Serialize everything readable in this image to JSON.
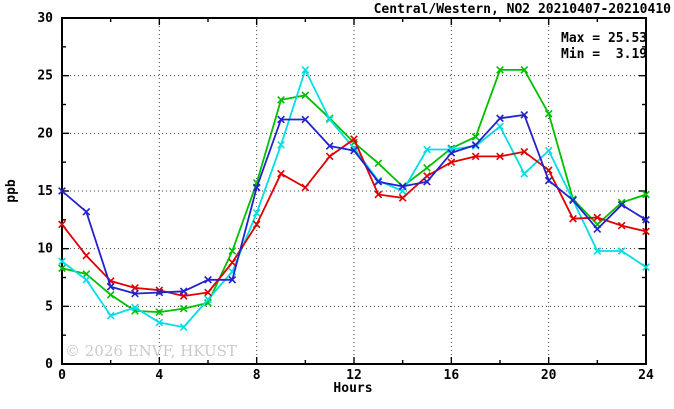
{
  "watermark": {
    "text": "© 2026 ENVF, HKUST",
    "color": "#cacaca"
  },
  "chart_data": {
    "type": "line",
    "title": "Central/Western, NO2 20210407-20210410",
    "xlabel": "Hours",
    "ylabel": "ppb",
    "xlim": [
      0,
      24
    ],
    "ylim": [
      0,
      30
    ],
    "x_ticks": [
      0,
      4,
      8,
      12,
      16,
      20,
      24
    ],
    "y_ticks": [
      0,
      5,
      10,
      15,
      20,
      25,
      30
    ],
    "x_minor_step": 2,
    "y_minor_step": 2.5,
    "grid": true,
    "legend": "none",
    "annotations": {
      "max_label": "Max = 25.53",
      "min_label": "Min =  3.19",
      "max": 25.53,
      "min": 3.19
    },
    "x": [
      0,
      1,
      2,
      3,
      4,
      5,
      6,
      7,
      8,
      9,
      10,
      11,
      12,
      13,
      14,
      15,
      16,
      17,
      18,
      19,
      20,
      21,
      22,
      23,
      24
    ],
    "series": [
      {
        "name": "green",
        "color": "#00bf00",
        "values": [
          8.3,
          7.8,
          6.0,
          4.6,
          4.5,
          4.8,
          5.3,
          9.8,
          15.7,
          22.9,
          23.3,
          21.3,
          19.2,
          17.4,
          15.4,
          17.0,
          18.7,
          19.7,
          25.5,
          25.5,
          21.7,
          14.3,
          12.1,
          14.0,
          14.7
        ]
      },
      {
        "name": "cyan",
        "color": "#00dee6",
        "values": [
          8.9,
          7.3,
          4.2,
          4.9,
          3.6,
          3.2,
          5.6,
          8.0,
          13.1,
          19.0,
          25.5,
          21.2,
          18.7,
          15.9,
          15.0,
          18.6,
          18.6,
          18.9,
          20.6,
          16.5,
          18.5,
          14.2,
          9.8,
          9.8,
          8.4
        ]
      },
      {
        "name": "red",
        "color": "#e00000",
        "values": [
          12.1,
          9.4,
          7.2,
          6.6,
          6.4,
          5.9,
          6.2,
          8.8,
          12.1,
          16.5,
          15.3,
          18.0,
          19.5,
          14.7,
          14.4,
          16.3,
          17.5,
          18.0,
          18.0,
          18.4,
          16.8,
          12.6,
          12.7,
          12.0,
          11.5
        ]
      },
      {
        "name": "blue",
        "color": "#2323cd",
        "values": [
          15.0,
          13.2,
          6.7,
          6.1,
          6.2,
          6.3,
          7.3,
          7.3,
          15.3,
          21.2,
          21.2,
          18.9,
          18.5,
          15.8,
          15.4,
          15.8,
          18.3,
          19.0,
          21.3,
          21.6,
          15.9,
          14.2,
          11.7,
          13.8,
          12.5
        ]
      }
    ]
  }
}
